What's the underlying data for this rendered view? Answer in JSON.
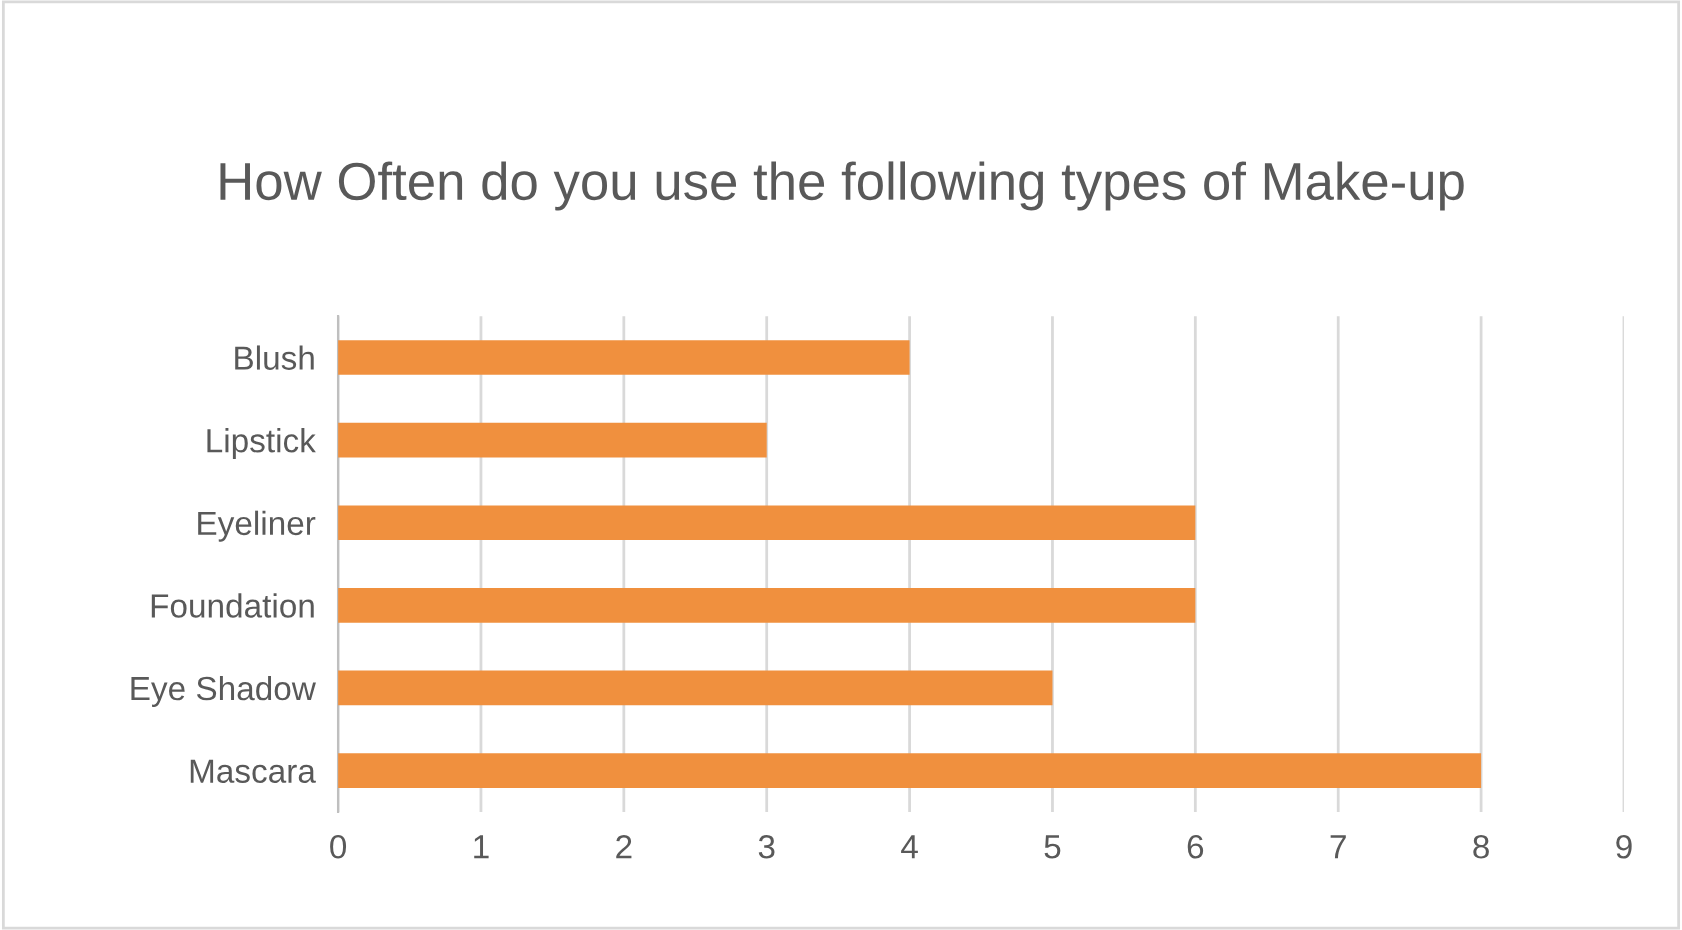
{
  "chart_data": {
    "type": "bar",
    "orientation": "horizontal",
    "title": "How Often do you use the following types of Make-up",
    "categories": [
      "Blush",
      "Lipstick",
      "Eyeliner",
      "Foundation",
      "Eye Shadow",
      "Mascara"
    ],
    "values": [
      4,
      3,
      6,
      6,
      5,
      8
    ],
    "color": "#f0903e",
    "xlim": [
      0,
      9
    ],
    "xticks": [
      0,
      1,
      2,
      3,
      4,
      5,
      6,
      7,
      8,
      9
    ],
    "grid": "x",
    "legend": false
  }
}
